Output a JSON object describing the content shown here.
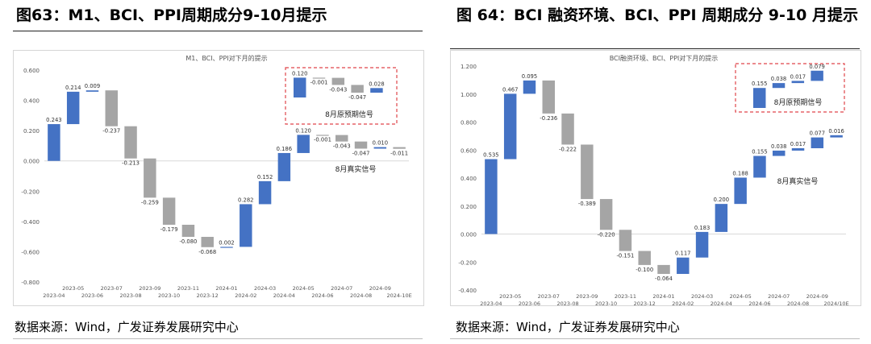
{
  "figures": [
    {
      "title": "图63：M1、BCI、PPI周期成分9-10月提示",
      "source": "数据来源：Wind，广发证券发展研究中心",
      "chart_data": {
        "type": "bar",
        "subtype": "waterfall",
        "title": "M1、BCI、PPI对下月的提示",
        "ylim": [
          -0.8,
          0.6
        ],
        "yticks": [
          "0.600",
          "0.400",
          "0.200",
          "0.000",
          "-0.200",
          "-0.400",
          "-0.600",
          "-0.800"
        ],
        "categories": [
          "2023-04",
          "2023-05",
          "2023-06",
          "2023-07",
          "2023-08",
          "2023-09",
          "2023-10",
          "2023-11",
          "2023-12",
          "2024-01",
          "2024-02",
          "2024-03",
          "2024-04",
          "2024-05",
          "2024-06",
          "2024-07",
          "2024-08",
          "2024-09",
          "2024-10E"
        ],
        "values": [
          0.243,
          0.214,
          0.009,
          -0.237,
          -0.213,
          -0.259,
          -0.179,
          -0.08,
          -0.068,
          0.002,
          0.282,
          0.152,
          0.186,
          0.12,
          -0.001,
          -0.043,
          -0.047,
          0.01,
          -0.011
        ],
        "labels": [
          "0.243",
          "0.214",
          "0.009",
          "-0.237",
          "-0.213",
          "-0.259",
          "-0.179",
          "-0.080",
          "-0.068",
          "0.002",
          "0.282",
          "0.152",
          "0.186",
          "0.120",
          "-0.001",
          "-0.043",
          "-0.047",
          "0.010",
          "-0.011"
        ],
        "colors": {
          "up": "#4472C4",
          "down": "#A5A5A5",
          "box": "#E0454A"
        },
        "inset": {
          "values": [
            0.12,
            -0.001,
            -0.043,
            -0.047,
            0.028
          ],
          "labels": [
            "0.120",
            "-0.001",
            "-0.043",
            "-0.047",
            "0.028"
          ],
          "caption": "8月原预期信号"
        },
        "annotation": "8月真实信号"
      }
    },
    {
      "title": "图 64：BCI 融资环境、BCI、PPI 周期成分 9-10 月提示",
      "source": "数据来源：Wind，广发证券发展研究中心",
      "chart_data": {
        "type": "bar",
        "subtype": "waterfall",
        "title": "BCI融资环境、BCI、PPI对下月的提示",
        "ylim": [
          -0.4,
          1.2
        ],
        "yticks": [
          "1.200",
          "1.000",
          "0.800",
          "0.600",
          "0.400",
          "0.200",
          "0.000",
          "-0.200",
          "-0.400"
        ],
        "categories": [
          "2023-04",
          "2023-05",
          "2023-06",
          "2023-07",
          "2023-08",
          "2023-09",
          "2023-10",
          "2023-11",
          "2023-12",
          "2024-01",
          "2024-02",
          "2024-03",
          "2024-04",
          "2024-05",
          "2024-06",
          "2024-07",
          "2024-08",
          "2024-09",
          "2024/10E"
        ],
        "values": [
          0.535,
          0.467,
          0.095,
          -0.236,
          -0.222,
          -0.389,
          -0.22,
          -0.151,
          -0.1,
          -0.064,
          0.117,
          0.183,
          0.2,
          0.188,
          0.155,
          0.038,
          0.017,
          0.077,
          0.016
        ],
        "labels": [
          "0.535",
          "0.467",
          "0.095",
          "-0.236",
          "-0.222",
          "-0.389",
          "-0.220",
          "-0.151",
          "-0.100",
          "-0.064",
          "0.117",
          "0.183",
          "0.200",
          "0.188",
          "0.155",
          "0.038",
          "0.017",
          "0.077",
          "0.016"
        ],
        "colors": {
          "up": "#4472C4",
          "down": "#A5A5A5",
          "box": "#E0454A"
        },
        "inset": {
          "values": [
            0.155,
            0.038,
            0.017,
            0.079
          ],
          "labels": [
            "0.155",
            "0.038",
            "0.017",
            "0.079"
          ],
          "caption": "8月原预期信号"
        },
        "annotation": "8月真实信号"
      }
    }
  ]
}
